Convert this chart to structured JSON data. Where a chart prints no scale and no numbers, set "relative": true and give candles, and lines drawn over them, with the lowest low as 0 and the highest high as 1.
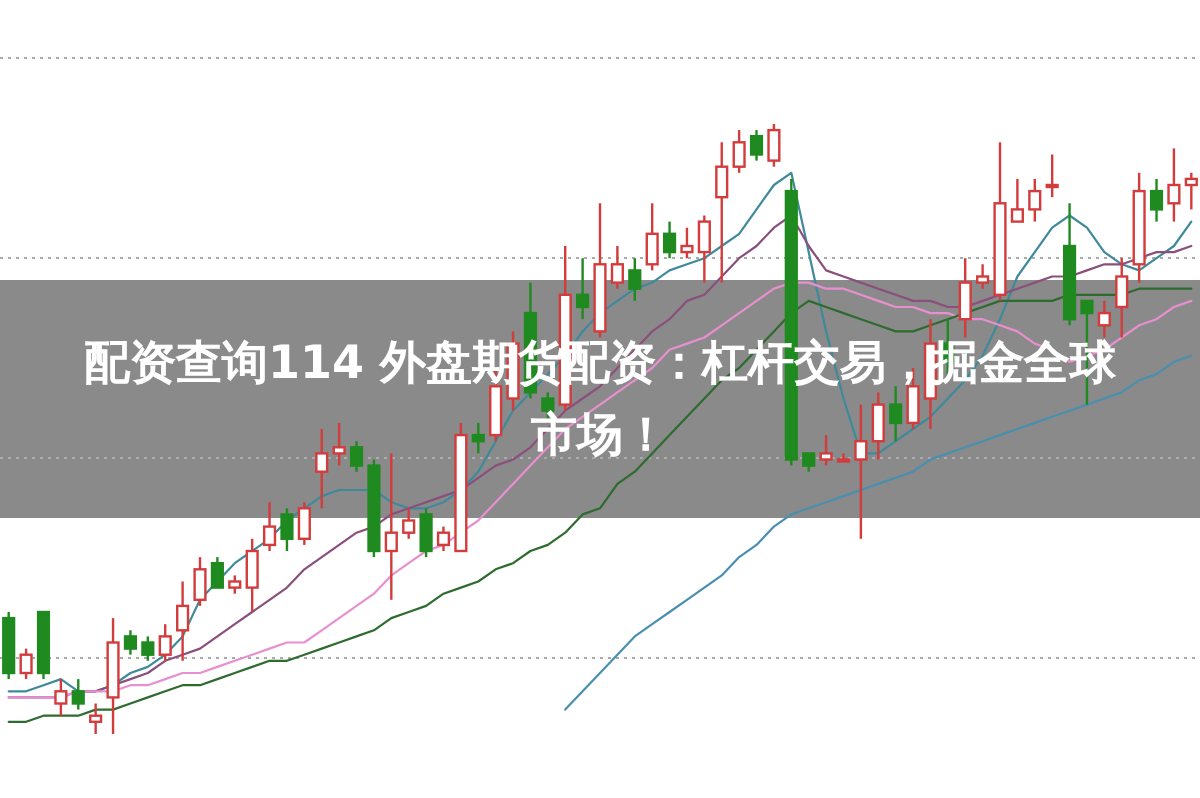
{
  "chart_data": {
    "type": "candlestick",
    "relative": true,
    "grid": "y",
    "title": "配资查询114 外盘期货配资：杠杆交易，掘金全球市场！",
    "categories": [
      null,
      null,
      null,
      null,
      null,
      null,
      null,
      null,
      null,
      null,
      null,
      null,
      null,
      null,
      null,
      null,
      null,
      null,
      null,
      null,
      null,
      null,
      null,
      null,
      null,
      null,
      null,
      null,
      null,
      null,
      null,
      null,
      null,
      null,
      null,
      null,
      null,
      null,
      null,
      null,
      null,
      null,
      null,
      null,
      null,
      null,
      null,
      null,
      null,
      null,
      null,
      null,
      null,
      null,
      null,
      null,
      null,
      null,
      null,
      null,
      null,
      null,
      null,
      null,
      null,
      null,
      null,
      null,
      null
    ],
    "ohlc": [
      [
        0.19,
        0.2,
        0.09,
        0.1
      ],
      [
        0.1,
        0.14,
        0.09,
        0.13
      ],
      [
        0.2,
        0.2,
        0.09,
        0.1
      ],
      [
        0.05,
        0.09,
        0.03,
        0.07
      ],
      [
        0.07,
        0.09,
        0.04,
        0.05
      ],
      [
        0.02,
        0.05,
        0,
        0.03
      ],
      [
        0.06,
        0.19,
        0,
        0.15
      ],
      [
        0.16,
        0.17,
        0.13,
        0.14
      ],
      [
        0.15,
        0.16,
        0.12,
        0.13
      ],
      [
        0.13,
        0.18,
        0.12,
        0.16
      ],
      [
        0.17,
        0.25,
        0.12,
        0.21
      ],
      [
        0.22,
        0.29,
        0.21,
        0.27
      ],
      [
        0.28,
        0.29,
        0.24,
        0.24
      ],
      [
        0.24,
        0.26,
        0.23,
        0.25
      ],
      [
        0.24,
        0.32,
        0.2,
        0.3
      ],
      [
        0.31,
        0.38,
        0.3,
        0.34
      ],
      [
        0.36,
        0.37,
        0.3,
        0.32
      ],
      [
        0.32,
        0.38,
        0.31,
        0.37
      ],
      [
        0.43,
        0.5,
        0.37,
        0.46
      ],
      [
        0.46,
        0.51,
        0.44,
        0.47
      ],
      [
        0.47,
        0.48,
        0.43,
        0.44
      ],
      [
        0.44,
        0.45,
        0.29,
        0.3
      ],
      [
        0.3,
        0.46,
        0.22,
        0.33
      ],
      [
        0.33,
        0.37,
        0.32,
        0.35
      ],
      [
        0.36,
        0.37,
        0.29,
        0.3
      ],
      [
        0.31,
        0.34,
        0.3,
        0.33
      ],
      [
        0.3,
        0.51,
        0.3,
        0.49
      ],
      [
        0.49,
        0.51,
        0.46,
        0.48
      ],
      [
        0.49,
        0.6,
        0.48,
        0.57
      ],
      [
        0.55,
        0.66,
        0.53,
        0.64
      ],
      [
        0.69,
        0.74,
        0.55,
        0.56
      ],
      [
        0.55,
        0.56,
        0.51,
        0.53
      ],
      [
        0.54,
        0.8,
        0.53,
        0.72
      ],
      [
        0.72,
        0.78,
        0.68,
        0.7
      ],
      [
        0.66,
        0.87,
        0.65,
        0.77
      ],
      [
        0.74,
        0.8,
        0.73,
        0.77
      ],
      [
        0.76,
        0.78,
        0.71,
        0.73
      ],
      [
        0.77,
        0.87,
        0.76,
        0.82
      ],
      [
        0.82,
        0.84,
        0.78,
        0.79
      ],
      [
        0.79,
        0.83,
        0.78,
        0.8
      ],
      [
        0.79,
        0.85,
        0.74,
        0.84
      ],
      [
        0.88,
        0.97,
        0.74,
        0.93
      ],
      [
        0.93,
        0.99,
        0.92,
        0.97
      ],
      [
        0.98,
        0.99,
        0.94,
        0.95
      ],
      [
        0.94,
        1,
        0.93,
        0.99
      ],
      [
        0.89,
        0.91,
        0.44,
        0.45
      ],
      [
        0.46,
        0.46,
        0.43,
        0.44
      ],
      [
        0.45,
        0.49,
        0.44,
        0.46
      ],
      [
        0.45,
        0.46,
        0.45,
        0.45
      ],
      [
        0.45,
        0.54,
        0.32,
        0.48
      ],
      [
        0.48,
        0.56,
        0.45,
        0.54
      ],
      [
        0.54,
        0.57,
        0.48,
        0.51
      ],
      [
        0.51,
        0.6,
        0.5,
        0.57
      ],
      [
        0.55,
        0.68,
        0.5,
        0.64
      ],
      [
        0.64,
        0.68,
        0.58,
        0.61
      ],
      [
        0.68,
        0.78,
        0.65,
        0.74
      ],
      [
        0.74,
        0.77,
        0.73,
        0.75
      ],
      [
        0.72,
        0.97,
        0.71,
        0.87
      ],
      [
        0.84,
        0.91,
        0.84,
        0.86
      ],
      [
        0.86,
        0.91,
        0.84,
        0.89
      ],
      [
        0.9,
        0.95,
        0.88,
        0.9
      ],
      [
        0.8,
        0.87,
        0.67,
        0.68
      ],
      [
        0.71,
        0.71,
        0.54,
        0.69
      ],
      [
        0.67,
        0.71,
        0.65,
        0.69
      ],
      [
        0.7,
        0.78,
        0.65,
        0.75
      ],
      [
        0.77,
        0.92,
        0.74,
        0.89
      ],
      [
        0.89,
        0.91,
        0.84,
        0.86
      ],
      [
        0.87,
        0.96,
        0.84,
        0.9
      ],
      [
        0.9,
        0.92,
        0.86,
        0.91
      ]
    ],
    "series": [
      {
        "type": "line",
        "color": "#3f8a9a",
        "values": [
          0.07,
          0.07,
          0.08,
          0.09,
          0.07,
          0.07,
          0.08,
          0.1,
          0.11,
          0.13,
          0.16,
          0.22,
          0.25,
          0.28,
          0.3,
          0.32,
          0.35,
          0.37,
          0.39,
          0.4,
          0.4,
          0.4,
          0.38,
          0.37,
          0.37,
          0.38,
          0.4,
          0.43,
          0.48,
          0.53,
          0.56,
          0.59,
          0.62,
          0.66,
          0.69,
          0.71,
          0.73,
          0.74,
          0.76,
          0.77,
          0.78,
          0.8,
          0.82,
          0.86,
          0.9,
          0.92,
          0.79,
          0.66,
          0.55,
          0.46,
          0.46,
          0.48,
          0.5,
          0.52,
          0.55,
          0.58,
          0.62,
          0.68,
          0.75,
          0.79,
          0.83,
          0.85,
          0.83,
          0.79,
          0.77,
          0.76,
          0.78,
          0.8,
          0.84
        ]
      },
      {
        "type": "line",
        "color": "#8a4f7d",
        "values": [
          0.06,
          0.06,
          0.06,
          0.06,
          0.07,
          0.07,
          0.08,
          0.09,
          0.1,
          0.12,
          0.13,
          0.14,
          0.16,
          0.18,
          0.2,
          0.22,
          0.24,
          0.27,
          0.29,
          0.31,
          0.33,
          0.34,
          0.36,
          0.37,
          0.38,
          0.39,
          0.4,
          0.42,
          0.44,
          0.45,
          0.47,
          0.5,
          0.53,
          0.55,
          0.57,
          0.6,
          0.63,
          0.66,
          0.68,
          0.71,
          0.72,
          0.75,
          0.78,
          0.8,
          0.83,
          0.85,
          0.8,
          0.76,
          0.75,
          0.74,
          0.73,
          0.72,
          0.71,
          0.71,
          0.7,
          0.7,
          0.71,
          0.72,
          0.73,
          0.74,
          0.75,
          0.75,
          0.76,
          0.77,
          0.77,
          0.78,
          0.79,
          0.79,
          0.8
        ]
      },
      {
        "type": "line",
        "color": "#e88fd0",
        "values": [
          0.06,
          0.06,
          0.06,
          0.06,
          0.07,
          0.07,
          0.07,
          0.08,
          0.08,
          0.09,
          0.1,
          0.1,
          0.11,
          0.12,
          0.13,
          0.14,
          0.15,
          0.15,
          0.17,
          0.19,
          0.21,
          0.23,
          0.26,
          0.28,
          0.3,
          0.31,
          0.33,
          0.35,
          0.38,
          0.41,
          0.44,
          0.47,
          0.5,
          0.52,
          0.54,
          0.56,
          0.58,
          0.6,
          0.63,
          0.64,
          0.65,
          0.67,
          0.69,
          0.71,
          0.73,
          0.74,
          0.74,
          0.73,
          0.73,
          0.72,
          0.71,
          0.7,
          0.7,
          0.69,
          0.69,
          0.68,
          0.68,
          0.67,
          0.66,
          0.64,
          0.63,
          0.61,
          0.62,
          0.63,
          0.65,
          0.67,
          0.68,
          0.7,
          0.71
        ]
      },
      {
        "type": "line",
        "color": "#2e6b2e",
        "values": [
          0.02,
          0.02,
          0.03,
          0.03,
          0.03,
          0.04,
          0.04,
          0.05,
          0.06,
          0.07,
          0.08,
          0.08,
          0.09,
          0.1,
          0.11,
          0.12,
          0.12,
          0.13,
          0.14,
          0.15,
          0.16,
          0.17,
          0.19,
          0.2,
          0.21,
          0.23,
          0.24,
          0.25,
          0.27,
          0.28,
          0.3,
          0.31,
          0.33,
          0.36,
          0.37,
          0.41,
          0.43,
          0.46,
          0.49,
          0.52,
          0.55,
          0.58,
          0.6,
          0.63,
          0.66,
          0.69,
          0.71,
          0.7,
          0.69,
          0.68,
          0.67,
          0.66,
          0.66,
          0.67,
          0.68,
          0.69,
          0.7,
          0.71,
          0.71,
          0.71,
          0.71,
          0.72,
          0.72,
          0.72,
          0.72,
          0.73,
          0.73,
          0.73,
          0.73
        ]
      },
      {
        "type": "line",
        "color": "#4a8fb0",
        "values": [
          null,
          null,
          null,
          null,
          null,
          null,
          null,
          null,
          null,
          null,
          null,
          null,
          null,
          null,
          null,
          null,
          null,
          null,
          null,
          null,
          null,
          null,
          null,
          null,
          null,
          null,
          null,
          null,
          null,
          null,
          null,
          null,
          0.04,
          0.07,
          0.1,
          0.13,
          0.16,
          0.18,
          0.2,
          0.22,
          0.24,
          0.26,
          0.29,
          0.31,
          0.34,
          0.36,
          0.37,
          0.38,
          0.39,
          0.4,
          0.41,
          0.42,
          0.43,
          0.45,
          0.46,
          0.47,
          0.48,
          0.49,
          0.5,
          0.51,
          0.52,
          0.53,
          0.54,
          0.55,
          0.56,
          0.58,
          0.59,
          0.61,
          0.62
        ]
      }
    ]
  }
}
